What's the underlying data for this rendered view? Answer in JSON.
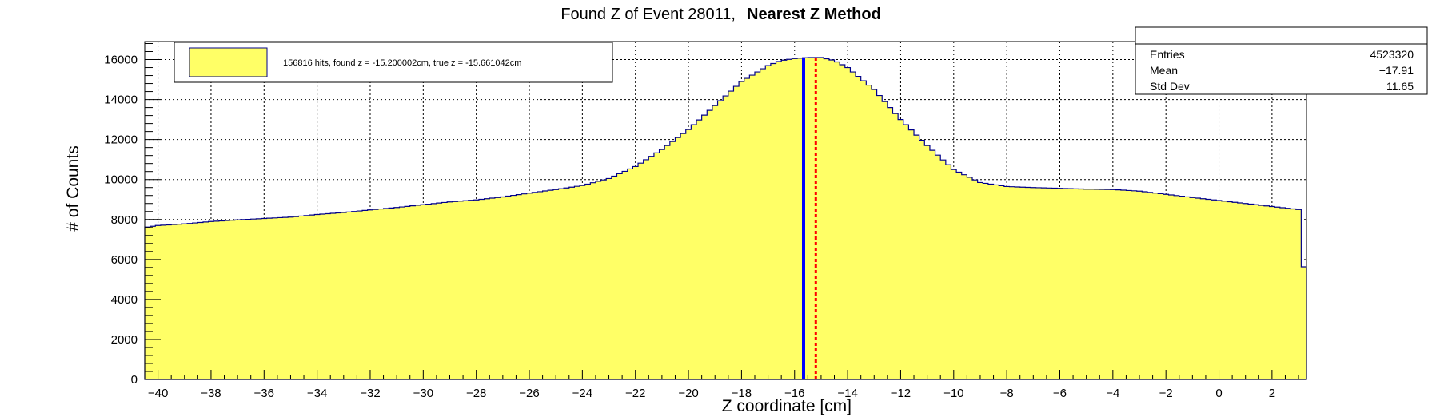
{
  "colors": {
    "fill": "#ffff66",
    "outline": "#00008b",
    "found_line": "#0000ff",
    "true_line": "#ff0000",
    "grid": "#000000"
  },
  "chart_data": {
    "type": "area",
    "title_prefix": "Found Z of Event 28011,",
    "title_bold": "Nearest Z Method",
    "xlabel": "Z coordinate [cm]",
    "ylabel": "# of Counts",
    "xlim": [
      -40.5,
      3.3
    ],
    "ylim": [
      0,
      16900
    ],
    "xticks": [
      -40,
      -38,
      -36,
      -34,
      -32,
      -30,
      -28,
      -26,
      -24,
      -22,
      -20,
      -18,
      -16,
      -14,
      -12,
      -10,
      -8,
      -6,
      -4,
      -2,
      0,
      2
    ],
    "yticks": [
      0,
      2000,
      4000,
      6000,
      8000,
      10000,
      12000,
      14000,
      16000
    ],
    "grid": true,
    "bin_width": 0.2,
    "series": [
      {
        "name": "156816 hits, found z = -15.200002cm, true z = -15.661042cm",
        "points": [
          [
            -40.5,
            7600
          ],
          [
            -40,
            7700
          ],
          [
            -39,
            7780
          ],
          [
            -38,
            7900
          ],
          [
            -37,
            7980
          ],
          [
            -36,
            8050
          ],
          [
            -35,
            8120
          ],
          [
            -34,
            8250
          ],
          [
            -33,
            8350
          ],
          [
            -32,
            8480
          ],
          [
            -31,
            8600
          ],
          [
            -30,
            8740
          ],
          [
            -29,
            8880
          ],
          [
            -28,
            8980
          ],
          [
            -27,
            9130
          ],
          [
            -26,
            9320
          ],
          [
            -25,
            9500
          ],
          [
            -24,
            9700
          ],
          [
            -23,
            10050
          ],
          [
            -22,
            10650
          ],
          [
            -21,
            11500
          ],
          [
            -20,
            12500
          ],
          [
            -19,
            13700
          ],
          [
            -18,
            14900
          ],
          [
            -17,
            15700
          ],
          [
            -16.5,
            15950
          ],
          [
            -16,
            16050
          ],
          [
            -15.5,
            16100
          ],
          [
            -15,
            16100
          ],
          [
            -14.5,
            15950
          ],
          [
            -14,
            15600
          ],
          [
            -13,
            14500
          ],
          [
            -12,
            13000
          ],
          [
            -11,
            11700
          ],
          [
            -10,
            10500
          ],
          [
            -9,
            9850
          ],
          [
            -8,
            9650
          ],
          [
            -7,
            9600
          ],
          [
            -6,
            9560
          ],
          [
            -5,
            9520
          ],
          [
            -4,
            9500
          ],
          [
            -3,
            9420
          ],
          [
            -2,
            9260
          ],
          [
            -1,
            9100
          ],
          [
            0,
            8950
          ],
          [
            1,
            8800
          ],
          [
            2,
            8650
          ],
          [
            3,
            8500
          ],
          [
            3.3,
            4200
          ]
        ]
      }
    ],
    "found_z": -15.2,
    "true_z": -15.661042,
    "legend": {
      "position": "top-left",
      "label": "156816 hits, found z = -15.200002cm, true z = -15.661042cm"
    },
    "stats": {
      "position": "top-right",
      "rows": [
        {
          "label": "Entries",
          "value": "4523320"
        },
        {
          "label": "Mean",
          "value": "−17.91"
        },
        {
          "label": "Std Dev",
          "value": "11.65"
        }
      ]
    }
  }
}
